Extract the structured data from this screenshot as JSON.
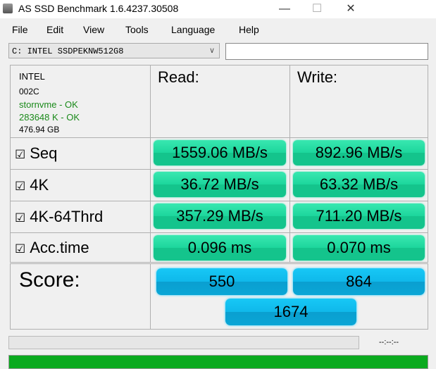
{
  "window": {
    "title": "AS SSD Benchmark 1.6.4237.30508",
    "minimize": "—",
    "maximize": "☐",
    "close": "✕"
  },
  "menu": [
    "File",
    "Edit",
    "View",
    "Tools",
    "Language",
    "Help"
  ],
  "drive_select": {
    "value": "C: INTEL SSDPEKNW512G8"
  },
  "path_input": {
    "value": ""
  },
  "drive_info": {
    "vendor": "INTEL",
    "firmware": "002C",
    "driver": "stornvme - OK",
    "alignment": "283648 K - OK",
    "size": "476.94 GB",
    "ok_color": "#1a8a1a"
  },
  "headers": {
    "read": "Read:",
    "write": "Write:"
  },
  "tests": [
    {
      "label": "Seq",
      "checked": true,
      "read": "1559.06 MB/s",
      "write": "892.96 MB/s"
    },
    {
      "label": "4K",
      "checked": true,
      "read": "36.72 MB/s",
      "write": "63.32 MB/s"
    },
    {
      "label": "4K-64Thrd",
      "checked": true,
      "read": "357.29 MB/s",
      "write": "711.20 MB/s"
    },
    {
      "label": "Acc.time",
      "checked": true,
      "read": "0.096 ms",
      "write": "0.070 ms"
    }
  ],
  "checkbox_glyph": "☑",
  "score": {
    "label": "Score:",
    "read": "550",
    "write": "864",
    "total": "1674"
  },
  "progress": {
    "time": "--:--:--",
    "percent": 0
  },
  "status_bar": {
    "color": "#0aaa1e",
    "percent": 100
  }
}
